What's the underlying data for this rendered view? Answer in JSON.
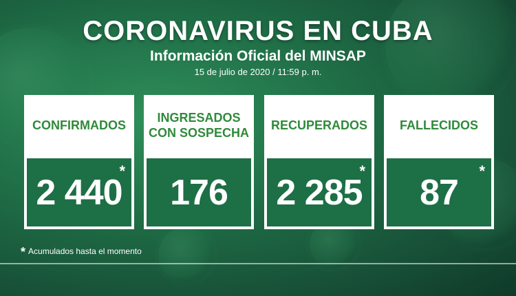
{
  "header": {
    "title": "CORONAVIRUS EN CUBA",
    "subtitle": "Información Oficial del MINSAP",
    "date": "15 de julio de 2020 / 11:59 p. m."
  },
  "cards": [
    {
      "label": "CONFIRMADOS",
      "value": "2 440",
      "asterisk": "*"
    },
    {
      "label": "INGRESADOS\nCON SOSPECHA",
      "value": "176",
      "asterisk": ""
    },
    {
      "label": "RECUPERADOS",
      "value": "2 285",
      "asterisk": "*"
    },
    {
      "label": "FALLECIDOS",
      "value": "87",
      "asterisk": "*"
    }
  ],
  "footnote": {
    "star": "*",
    "text": "Acumulados hasta el momento"
  },
  "colors": {
    "background": "#1f6d46",
    "label_text": "#2f8a3a",
    "card_white": "#ffffff"
  }
}
